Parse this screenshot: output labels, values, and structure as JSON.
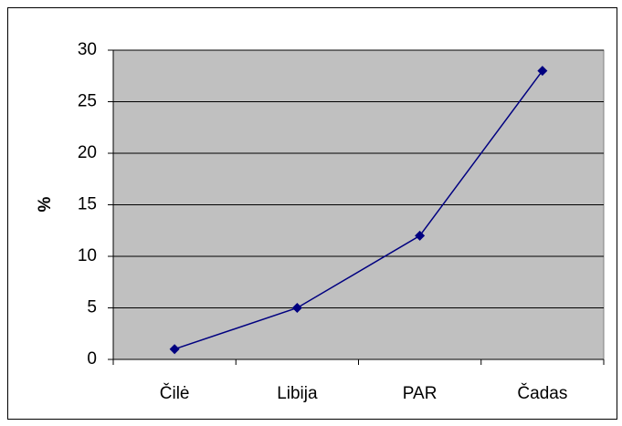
{
  "chart_data": {
    "type": "line",
    "categories": [
      "Čilė",
      "Libija",
      "PAR",
      "Čadas"
    ],
    "values": [
      1,
      5,
      12,
      28
    ],
    "color": "#000080",
    "ylabel": "%",
    "ylim": [
      0,
      30
    ],
    "yticks": [
      0,
      5,
      10,
      15,
      20,
      25,
      30
    ],
    "grid": true,
    "plot_background": "#c0c0c0"
  }
}
